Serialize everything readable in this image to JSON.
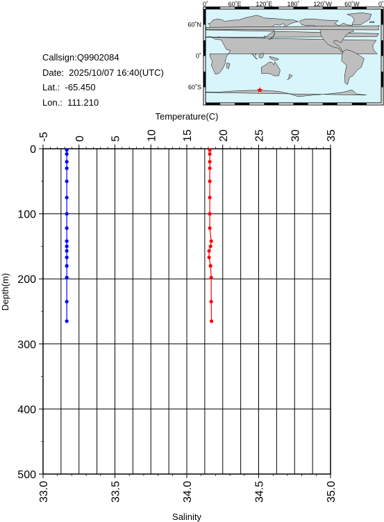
{
  "header": {
    "callsign": "Callsign:Q9902084",
    "date": "Date:  2025/10/07 16:40(UTC)",
    "lat": "Lat.:  -65.450",
    "lon": "Lon.:  111.210"
  },
  "map": {
    "lon_labels": [
      "0˚",
      "60˚E",
      "120˚E",
      "180˚",
      "120˚W",
      "60˚W",
      "0˚"
    ],
    "lat_labels": [
      "60˚N",
      "0˚",
      "60˚S"
    ],
    "ocean_color": "#d7f5fa",
    "land_color": "#bebebe",
    "marker_color": "#ff0000",
    "station": {
      "lat": -65.45,
      "lon": 111.21
    }
  },
  "chart_data": {
    "type": "line",
    "top_axis": {
      "label": "Temperature(C)",
      "range": [
        -5,
        35
      ],
      "ticks": [
        "-5",
        "0",
        "5",
        "10",
        "15",
        "20",
        "25",
        "30",
        "35"
      ]
    },
    "bottom_axis": {
      "label": "Salinity",
      "range": [
        33.0,
        35.0
      ],
      "ticks": [
        "33.0",
        "33.5",
        "34.0",
        "34.5",
        "35.0"
      ]
    },
    "left_axis": {
      "label": "Depth(m)",
      "range": [
        0,
        500
      ],
      "inverted": true,
      "ticks": [
        "0",
        "100",
        "200",
        "300",
        "400",
        "500"
      ]
    },
    "grid": true,
    "series": [
      {
        "axis": "top",
        "color": "#0000ff",
        "points": [
          {
            "depth": 2,
            "value": -1.7
          },
          {
            "depth": 8,
            "value": -1.7
          },
          {
            "depth": 20,
            "value": -1.7
          },
          {
            "depth": 30,
            "value": -1.7
          },
          {
            "depth": 50,
            "value": -1.7
          },
          {
            "depth": 75,
            "value": -1.7
          },
          {
            "depth": 100,
            "value": -1.7
          },
          {
            "depth": 122,
            "value": -1.7
          },
          {
            "depth": 142,
            "value": -1.7
          },
          {
            "depth": 150,
            "value": -1.7
          },
          {
            "depth": 157,
            "value": -1.7
          },
          {
            "depth": 167,
            "value": -1.7
          },
          {
            "depth": 180,
            "value": -1.7
          },
          {
            "depth": 198,
            "value": -1.7
          },
          {
            "depth": 235,
            "value": -1.7
          },
          {
            "depth": 265,
            "value": -1.7
          }
        ]
      },
      {
        "axis": "bottom",
        "color": "#ff0000",
        "points": [
          {
            "depth": 2,
            "value": 34.16
          },
          {
            "depth": 8,
            "value": 34.16
          },
          {
            "depth": 20,
            "value": 34.16
          },
          {
            "depth": 30,
            "value": 34.16
          },
          {
            "depth": 50,
            "value": 34.16
          },
          {
            "depth": 75,
            "value": 34.16
          },
          {
            "depth": 100,
            "value": 34.16
          },
          {
            "depth": 122,
            "value": 34.16
          },
          {
            "depth": 142,
            "value": 34.17
          },
          {
            "depth": 150,
            "value": 34.165
          },
          {
            "depth": 157,
            "value": 34.155
          },
          {
            "depth": 167,
            "value": 34.155
          },
          {
            "depth": 180,
            "value": 34.165
          },
          {
            "depth": 198,
            "value": 34.17
          },
          {
            "depth": 235,
            "value": 34.17
          },
          {
            "depth": 265,
            "value": 34.172
          }
        ]
      }
    ]
  }
}
